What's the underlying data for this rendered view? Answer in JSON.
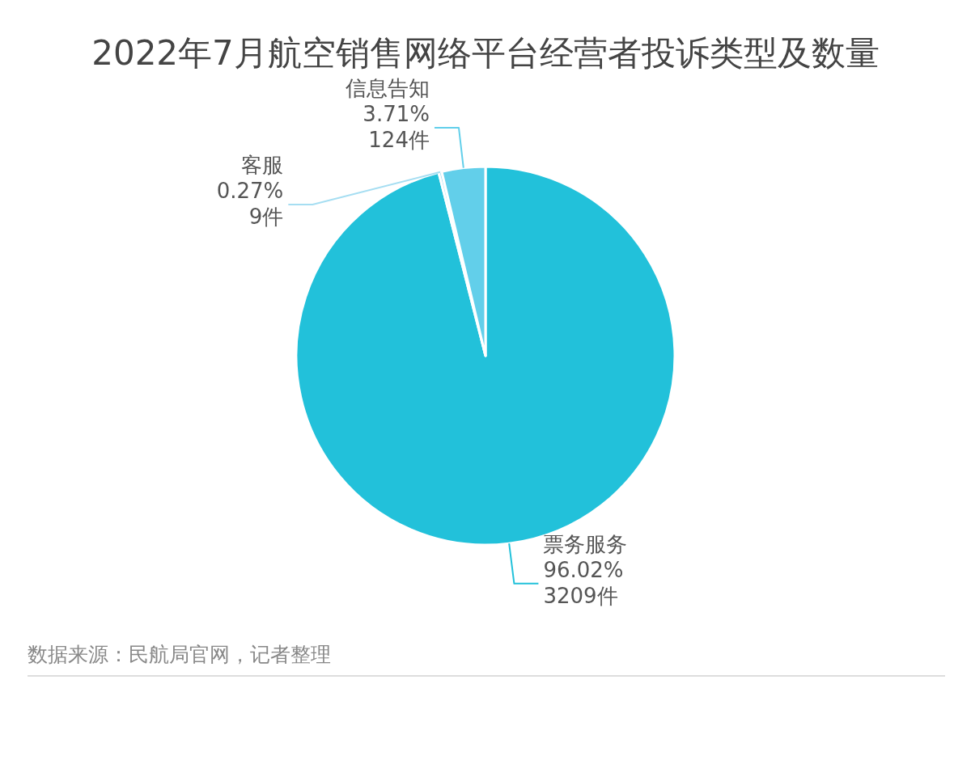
{
  "chart_data": {
    "type": "pie",
    "title": "2022年7月航空销售网络平台经营者投诉类型及数量",
    "categories": [
      "票务服务",
      "客服",
      "信息告知"
    ],
    "values": [
      3209,
      9,
      124
    ],
    "value_labels": [
      "96.02%\n3209件",
      "0.27%\n9件",
      "3.71%\n124件"
    ],
    "colors": [
      "#22c1da",
      "#a6def2",
      "#62cfea"
    ],
    "annotations": [
      "数据来源：民航局官网，记者整理"
    ]
  }
}
